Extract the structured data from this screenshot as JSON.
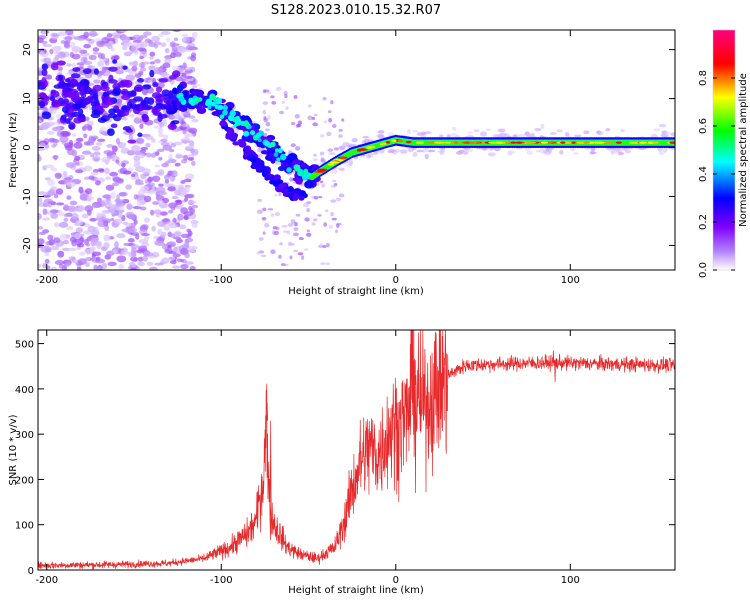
{
  "title": "S128.2023.010.15.32.R07",
  "chart_data": [
    {
      "type": "heatmap",
      "xlabel": "Height of straight line (km)",
      "ylabel": "Frequency (Hz)",
      "xlim": [
        -205,
        160
      ],
      "ylim": [
        -25,
        24
      ],
      "xticks": [
        -200,
        -100,
        0,
        100
      ],
      "yticks": [
        -20,
        -10,
        0,
        10,
        20
      ],
      "colorbar": {
        "label": "Normalized spectral amplitude",
        "range": [
          0,
          1
        ],
        "ticks": [
          0.0,
          0.2,
          0.4,
          0.6,
          0.8
        ],
        "colors": [
          "#ffffff",
          "#7f00ff",
          "#0000ff",
          "#00ffff",
          "#00ff00",
          "#ffff00",
          "#ff0000",
          "#ff007f"
        ]
      },
      "ridge": {
        "x": [
          -200,
          -180,
          -160,
          -140,
          -125,
          -115,
          -105,
          -95,
          -85,
          -75,
          -65,
          -55,
          -48,
          -44,
          -35,
          -25,
          -15,
          -5,
          0,
          10,
          50,
          100,
          160
        ],
        "y": [
          11,
          10,
          10,
          9,
          10,
          10,
          9,
          7,
          4,
          1,
          -2,
          -5,
          -6,
          -5,
          -3,
          -1,
          0,
          1,
          1.5,
          1,
          1,
          1,
          1
        ]
      },
      "secondary_ridge": {
        "x": [
          -100,
          -90,
          -80,
          -72,
          -65,
          -58,
          -52
        ],
        "y": [
          5,
          1,
          -3,
          -6,
          -8,
          -9.5,
          -10
        ]
      }
    },
    {
      "type": "line",
      "xlabel": "Height of straight line (km)",
      "ylabel": "SNR (10 * v/v)",
      "xlim": [
        -205,
        160
      ],
      "ylim": [
        0,
        530
      ],
      "xticks": [
        -200,
        -100,
        0,
        100
      ],
      "yticks": [
        0,
        100,
        200,
        300,
        400,
        500
      ],
      "color": "#e8292b",
      "trend": {
        "x": [
          -205,
          -160,
          -130,
          -110,
          -95,
          -85,
          -80,
          -76,
          -74,
          -72,
          -68,
          -62,
          -55,
          -45,
          -35,
          -30,
          -25,
          -20,
          -15,
          -10,
          -5,
          0,
          5,
          8,
          10,
          12,
          15,
          20,
          25,
          30,
          40,
          60,
          90,
          120,
          160
        ],
        "y": [
          10,
          12,
          15,
          25,
          50,
          80,
          110,
          200,
          330,
          120,
          90,
          50,
          35,
          25,
          50,
          100,
          180,
          240,
          270,
          250,
          300,
          320,
          330,
          360,
          480,
          380,
          360,
          380,
          410,
          430,
          452,
          455,
          458,
          455,
          452
        ]
      },
      "spikes": [
        {
          "x": -74,
          "y": 370
        },
        {
          "x": -72,
          "y": 330
        },
        {
          "x": 9,
          "y": 530
        },
        {
          "x": 11,
          "y": 170
        },
        {
          "x": -42,
          "y": 30
        },
        {
          "x": 90,
          "y": 485
        },
        {
          "x": 91,
          "y": 415
        }
      ]
    }
  ]
}
